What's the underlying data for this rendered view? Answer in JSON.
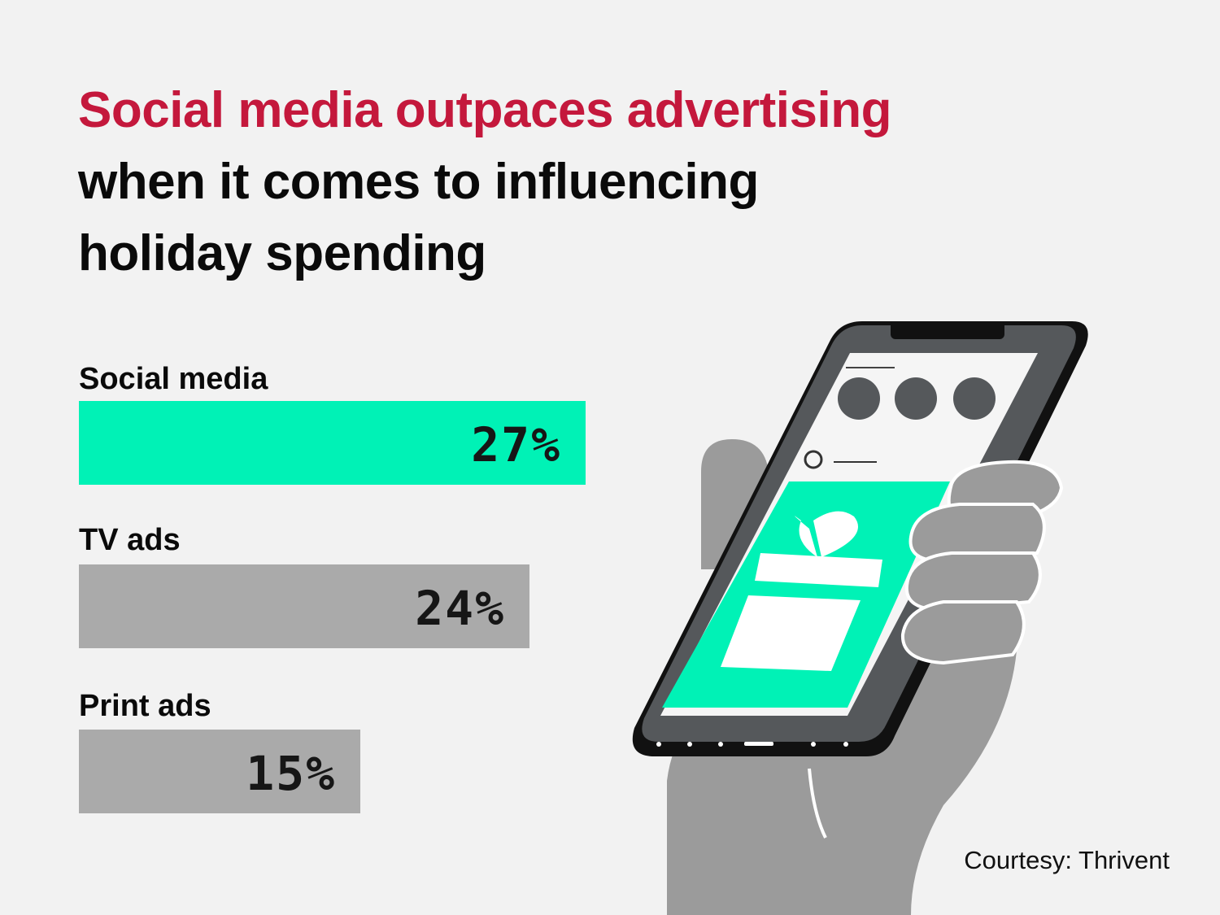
{
  "title": {
    "line1": "Social media outpaces advertising",
    "line2": "when it comes to influencing",
    "line3": "holiday spending"
  },
  "chart_data": {
    "type": "bar",
    "orientation": "horizontal",
    "categories": [
      "Social media",
      "TV ads",
      "Print ads"
    ],
    "values": [
      27,
      24,
      15
    ],
    "value_labels": [
      "27%",
      "24%",
      "15%"
    ],
    "colors": [
      "#00f2b6",
      "#aaaaaa",
      "#aaaaaa"
    ],
    "xlim": [
      0,
      27
    ],
    "grid": false,
    "legend": "none"
  },
  "source": "Courtesy: Thrivent",
  "colors": {
    "title_accent": "#c4183c",
    "highlight": "#00f2b6",
    "muted_bar": "#aaaaaa",
    "background": "#f2f2f2"
  },
  "illustration": {
    "icons": [
      "hand-icon",
      "smartphone-icon",
      "profile-avatar-icon",
      "gift-box-icon"
    ]
  }
}
